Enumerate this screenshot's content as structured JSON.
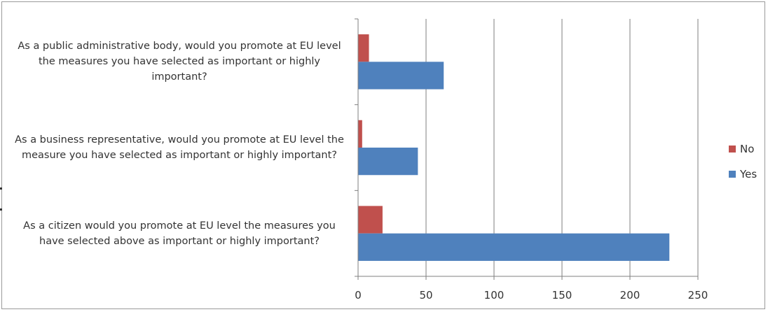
{
  "chart_data": {
    "type": "bar",
    "orientation": "horizontal",
    "categories": [
      "As a public administrative body, would you promote at EU level the measures you have selected as important or highly important?",
      "As a business representative, would you promote at EU level the measure you have selected as important or highly important?",
      "As a citizen would you promote at EU level the measures you have selected above as important or highly important?"
    ],
    "series": [
      {
        "name": "No",
        "color": "#c0504d",
        "values": [
          8,
          3,
          18
        ]
      },
      {
        "name": "Yes",
        "color": "#4f81bd",
        "values": [
          63,
          44,
          229
        ]
      }
    ],
    "xlim": [
      0,
      250
    ],
    "xticks": [
      0,
      50,
      100,
      150,
      200,
      250
    ],
    "grid": true,
    "legend_position": "right"
  }
}
